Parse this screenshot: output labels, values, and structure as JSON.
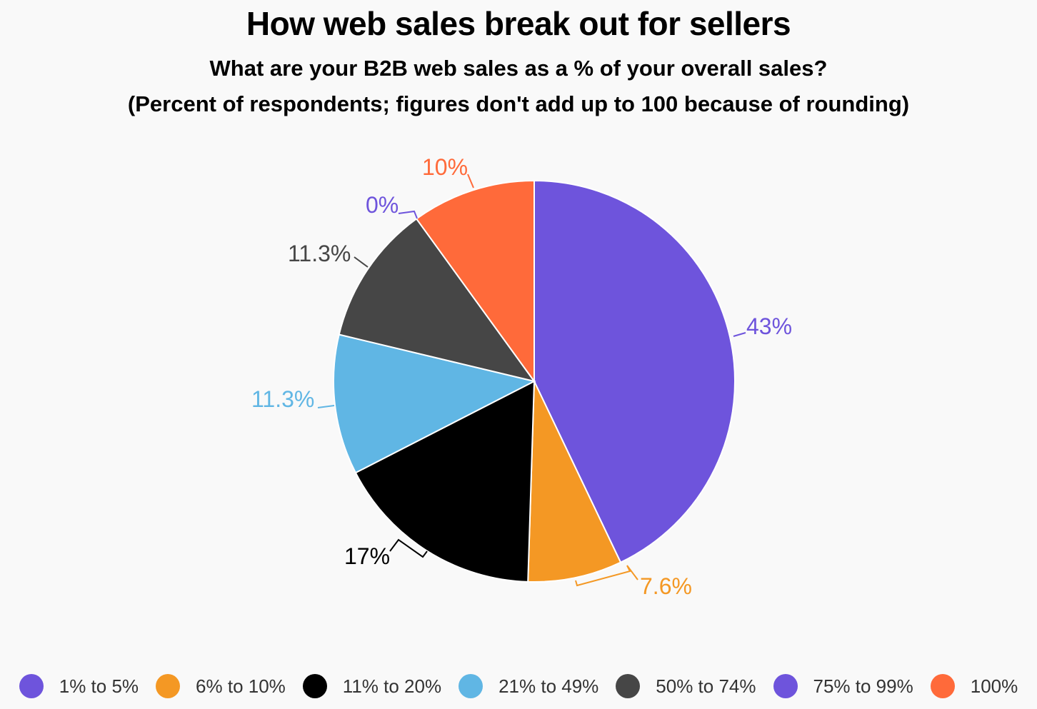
{
  "chart_data": {
    "type": "pie",
    "title": "How web sales break out for sellers",
    "subtitle": "What are your B2B web sales as a % of your overall sales?",
    "subtitle2": "(Percent of respondents; figures don't add up to 100 because of rounding)",
    "categories": [
      "1% to 5%",
      "6% to 10%",
      "11% to 20%",
      "21% to 49%",
      "50% to 74%",
      "75% to 99%",
      "100%"
    ],
    "values": [
      43,
      7.6,
      17,
      11.3,
      11.3,
      0,
      10
    ],
    "value_labels": [
      "43%",
      "7.6%",
      "17%",
      "11.3%",
      "11.3%",
      "0%",
      "10%"
    ],
    "colors": [
      "#6e54dc",
      "#f49824",
      "#000000",
      "#60b6e4",
      "#464646",
      "#6e54dc",
      "#ff6a3a"
    ],
    "label_colors": [
      "#6e54dc",
      "#f49824",
      "#000000",
      "#60b6e4",
      "#464646",
      "#6e54dc",
      "#ff6a3a"
    ],
    "legend_position": "bottom",
    "start_angle": "top",
    "direction": "clockwise"
  }
}
